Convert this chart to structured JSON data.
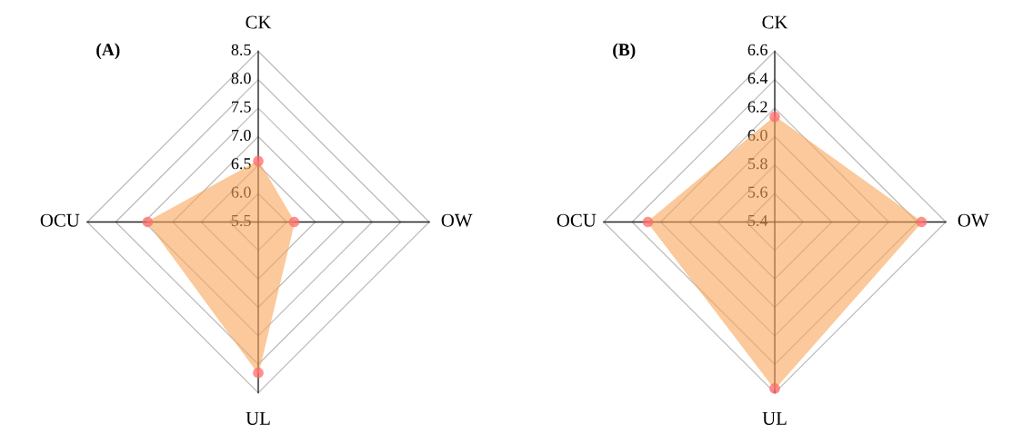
{
  "chart_data": [
    {
      "type": "radar",
      "title": "(A)",
      "categories": [
        "CK",
        "OW",
        "UL",
        "OCU"
      ],
      "ylim": [
        5.5,
        8.5
      ],
      "yticks": [
        5.5,
        {
          "value": 6,
          "label": "6.0"
        },
        6.5,
        {
          "value": 7,
          "label": "7.0"
        },
        7.5,
        {
          "value": 8,
          "label": "8.0"
        },
        8.5
      ],
      "grid": true,
      "marker": "circle",
      "series": [
        {
          "color": "#f9a65a",
          "colors": [
            "#ff6b6b",
            "#ff6b6b",
            "#ff6b6b",
            "#ff6b6b"
          ],
          "values": [
            6.57,
            6.13,
            8.15,
            7.44
          ]
        }
      ]
    },
    {
      "type": "radar",
      "title": "(B)",
      "categories": [
        "CK",
        "OW",
        "UL",
        "OCU"
      ],
      "ylim": [
        5.4,
        6.6
      ],
      "yticks": [
        5.4,
        5.6,
        5.8,
        {
          "value": 6,
          "label": "6.0"
        },
        6.2,
        6.4,
        6.6
      ],
      "grid": true,
      "marker": "circle",
      "series": [
        {
          "color": "#f9a65a",
          "colors": [
            "#ff6b6b",
            "#ff6b6b",
            "#ff6b6b",
            "#ff6b6b"
          ],
          "values": [
            6.14,
            6.43,
            6.57,
            6.29
          ]
        }
      ]
    }
  ]
}
